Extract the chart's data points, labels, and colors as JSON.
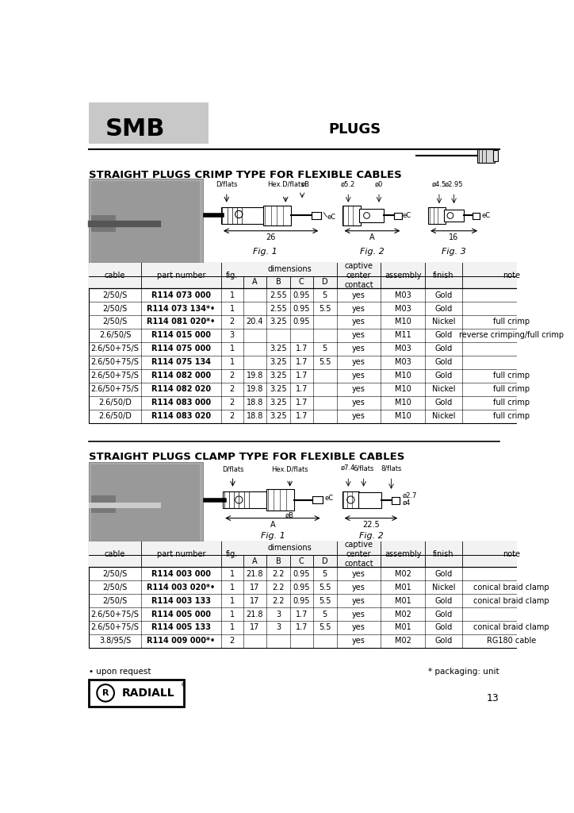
{
  "page_bg": "#ffffff",
  "header_bg": "#c8c8c8",
  "smb_text": "SMB",
  "plugs_text": "PLUGS",
  "section1_title": "STRAIGHT PLUGS CRIMP TYPE FOR FLEXIBLE CABLES",
  "section2_title": "STRAIGHT PLUGS CLAMP TYPE FOR FLEXIBLE CABLES",
  "table1_rows": [
    [
      "2/50/S",
      "R114 073 000",
      "1",
      "",
      "2.55",
      "0.95",
      "5",
      "yes",
      "M03",
      "Gold",
      ""
    ],
    [
      "2/50/S",
      "R114 073 134*•",
      "1",
      "",
      "2.55",
      "0.95",
      "5.5",
      "yes",
      "M03",
      "Gold",
      ""
    ],
    [
      "2/50/S",
      "R114 081 020*•",
      "2",
      "20.4",
      "3.25",
      "0.95",
      "",
      "yes",
      "M10",
      "Nickel",
      "full crimp"
    ],
    [
      "2.6/50/S",
      "R114 015 000",
      "3",
      "",
      "",
      "",
      "",
      "yes",
      "M11",
      "Gold",
      "reverse crimping/full crimp"
    ],
    [
      "2.6/50+75/S",
      "R114 075 000",
      "1",
      "",
      "3.25",
      "1.7",
      "5",
      "yes",
      "M03",
      "Gold",
      ""
    ],
    [
      "2.6/50+75/S",
      "R114 075 134",
      "1",
      "",
      "3.25",
      "1.7",
      "5.5",
      "yes",
      "M03",
      "Gold",
      ""
    ],
    [
      "2.6/50+75/S",
      "R114 082 000",
      "2",
      "19.8",
      "3.25",
      "1.7",
      "",
      "yes",
      "M10",
      "Gold",
      "full crimp"
    ],
    [
      "2.6/50+75/S",
      "R114 082 020",
      "2",
      "19.8",
      "3.25",
      "1.7",
      "",
      "yes",
      "M10",
      "Nickel",
      "full crimp"
    ],
    [
      "2.6/50/D",
      "R114 083 000",
      "2",
      "18.8",
      "3.25",
      "1.7",
      "",
      "yes",
      "M10",
      "Gold",
      "full crimp"
    ],
    [
      "2.6/50/D",
      "R114 083 020",
      "2",
      "18.8",
      "3.25",
      "1.7",
      "",
      "yes",
      "M10",
      "Nickel",
      "full crimp"
    ]
  ],
  "table2_rows": [
    [
      "2/50/S",
      "R114 003 000",
      "1",
      "21.8",
      "2.2",
      "0.95",
      "5",
      "yes",
      "M02",
      "Gold",
      ""
    ],
    [
      "2/50/S",
      "R114 003 020*•",
      "1",
      "17",
      "2.2",
      "0.95",
      "5.5",
      "yes",
      "M01",
      "Nickel",
      "conical braid clamp"
    ],
    [
      "2/50/S",
      "R114 003 133",
      "1",
      "17",
      "2.2",
      "0.95",
      "5.5",
      "yes",
      "M01",
      "Gold",
      "conical braid clamp"
    ],
    [
      "2.6/50+75/S",
      "R114 005 000",
      "1",
      "21.8",
      "3",
      "1.7",
      "5",
      "yes",
      "M02",
      "Gold",
      ""
    ],
    [
      "2.6/50+75/S",
      "R114 005 133",
      "1",
      "17",
      "3",
      "1.7",
      "5.5",
      "yes",
      "M01",
      "Gold",
      "conical braid clamp"
    ],
    [
      "3.8/95/S",
      "R114 009 000*•",
      "2",
      "",
      "",
      "",
      "",
      "yes",
      "M02",
      "Gold",
      "RG180 cable"
    ]
  ],
  "footnote1": "• upon request",
  "footnote2": "* packaging: unit",
  "page_number": "13"
}
